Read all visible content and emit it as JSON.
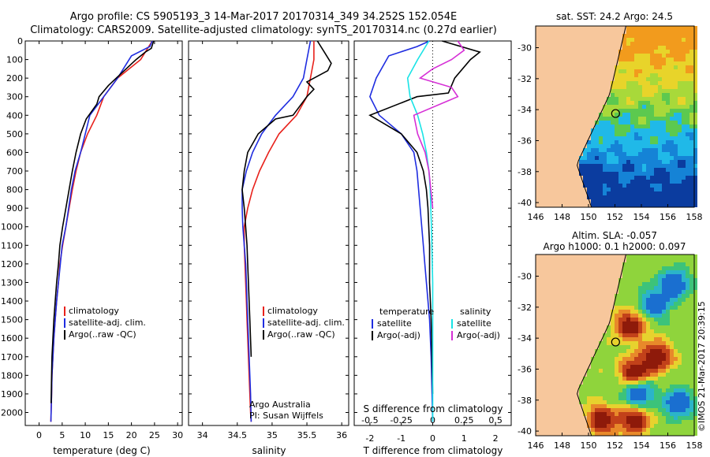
{
  "header": {
    "line1": "Argo profile: CS 5905193_3 14-Mar-2017 20170314_349 34.252S 152.054E",
    "line2": "Climatology: CARS2009. Satellite-adjusted climatology: synTS_20170314.nc (0.27d earlier)"
  },
  "colors": {
    "climatology": "#e8211b",
    "satellite": "#1f2de0",
    "argo": "#000000",
    "sat_salinity": "#19e3e6",
    "argo_salinity": "#d62fd6",
    "land": "#f7c79c"
  },
  "chart_data": [
    {
      "id": "temperature",
      "type": "line",
      "xlabel": "temperature (deg C)",
      "xlim": [
        -3,
        31
      ],
      "xticks": [
        0,
        5,
        10,
        15,
        20,
        25,
        30
      ],
      "ylim": [
        2070,
        0
      ],
      "yticks": [
        0,
        100,
        200,
        300,
        400,
        500,
        600,
        700,
        800,
        900,
        1000,
        1100,
        1200,
        1300,
        1400,
        1500,
        1600,
        1700,
        1800,
        1900,
        2000
      ],
      "legend": [
        "climatology",
        "satellite-adj. clim.",
        "Argo(..raw -QC)"
      ],
      "series": [
        {
          "name": "climatology",
          "x": [
            24.5,
            22,
            17,
            14,
            12.5,
            10.5,
            9,
            8,
            7.2,
            6.5,
            5.8,
            5.1,
            4.5,
            4.2,
            3.8,
            3.5,
            3.2,
            3,
            2.8,
            2.7,
            2.6,
            2.55
          ],
          "y": [
            0,
            100,
            200,
            300,
            400,
            500,
            600,
            700,
            800,
            900,
            1000,
            1100,
            1200,
            1300,
            1400,
            1500,
            1600,
            1700,
            1800,
            1900,
            2000,
            2050
          ]
        },
        {
          "name": "satellite",
          "x": [
            24.5,
            24,
            20,
            17,
            14,
            11,
            10,
            9,
            7.8,
            7,
            6.4,
            5.8,
            5,
            4.6,
            4.2,
            3.8,
            3.5,
            3.2,
            3,
            2.8,
            2.7,
            2.6,
            2.55
          ],
          "y": [
            0,
            30,
            80,
            200,
            300,
            400,
            500,
            600,
            700,
            800,
            900,
            1000,
            1100,
            1200,
            1300,
            1400,
            1500,
            1600,
            1700,
            1800,
            1900,
            2000,
            2050
          ]
        },
        {
          "name": "argo",
          "x": [
            24.8,
            24.3,
            23,
            21,
            18,
            15,
            13,
            12.5,
            10.2,
            9,
            8,
            7.2,
            6.5,
            5.8,
            5.1,
            4.5,
            4.2,
            3.8,
            3.5,
            3.2,
            3,
            2.8,
            2.7,
            2.6
          ],
          "y": [
            0,
            40,
            60,
            100,
            170,
            240,
            300,
            340,
            420,
            500,
            600,
            700,
            800,
            900,
            1000,
            1100,
            1200,
            1300,
            1400,
            1500,
            1600,
            1700,
            1800,
            1950
          ]
        }
      ]
    },
    {
      "id": "salinity",
      "type": "line",
      "xlabel": "salinity",
      "xlim": [
        33.8,
        36.1
      ],
      "xticks": [
        34,
        34.5,
        35,
        35.5,
        36
      ],
      "ylim": [
        2070,
        0
      ],
      "legend": [
        "climatology",
        "satellite-adj. clim.",
        "Argo(..raw -QC)"
      ],
      "annotations": [
        "Argo Australia",
        "PI: Susan Wijffels"
      ],
      "series": [
        {
          "name": "climatology",
          "x": [
            35.6,
            35.6,
            35.55,
            35.5,
            35.35,
            35.1,
            34.95,
            34.82,
            34.72,
            34.65,
            34.6,
            34.6,
            34.61,
            34.62,
            34.63,
            34.64,
            34.65,
            34.66,
            34.67,
            34.68,
            34.69,
            34.7
          ],
          "y": [
            0,
            100,
            200,
            300,
            400,
            500,
            600,
            700,
            800,
            900,
            1000,
            1100,
            1200,
            1300,
            1400,
            1500,
            1600,
            1700,
            1800,
            1900,
            2000,
            2050
          ]
        },
        {
          "name": "satellite",
          "x": [
            35.55,
            35.5,
            35.45,
            35.3,
            35.05,
            34.85,
            34.72,
            34.63,
            34.57,
            34.57,
            34.58,
            34.6,
            34.62,
            34.63,
            34.64,
            34.65,
            34.66,
            34.67,
            34.68,
            34.69,
            34.7
          ],
          "y": [
            0,
            100,
            200,
            300,
            400,
            500,
            600,
            700,
            800,
            900,
            1000,
            1100,
            1200,
            1300,
            1400,
            1500,
            1600,
            1700,
            1800,
            1900,
            2050
          ]
        },
        {
          "name": "argo",
          "x": [
            35.65,
            35.75,
            35.85,
            35.8,
            35.5,
            35.6,
            35.5,
            35.3,
            35.05,
            34.8,
            34.65,
            34.6,
            34.57,
            34.6,
            34.62,
            34.64,
            34.66,
            34.68,
            34.7
          ],
          "y": [
            0,
            60,
            120,
            160,
            220,
            260,
            300,
            400,
            420,
            500,
            600,
            700,
            800,
            900,
            1000,
            1100,
            1300,
            1500,
            1700
          ]
        }
      ]
    },
    {
      "id": "difference",
      "type": "line",
      "xlabel_top": "S difference from climatology",
      "xlabel_bottom": "T difference from climatology",
      "top_ticks": [
        -0.5,
        -0.25,
        0,
        0.25,
        0.5
      ],
      "bottom_ticks": [
        -2,
        -1,
        0,
        1,
        2
      ],
      "xlim": [
        -2.5,
        2.5
      ],
      "ylim": [
        2070,
        0
      ],
      "legend_left_title": "temperature",
      "legend_right_title": "salinity",
      "legend": [
        "satellite",
        "Argo(-adj)",
        "satellite",
        "Argo(-adj)"
      ],
      "series": [
        {
          "name": "T satellite",
          "x": [
            -0.1,
            -0.5,
            -1.4,
            -1.8,
            -2,
            -1.7,
            -1,
            -0.6,
            -0.5,
            -0.45,
            -0.4,
            -0.35,
            -0.3,
            -0.25,
            -0.2,
            -0.15,
            -0.1,
            -0.05,
            0
          ],
          "y": [
            0,
            30,
            80,
            200,
            300,
            400,
            500,
            600,
            700,
            800,
            900,
            1000,
            1100,
            1200,
            1300,
            1400,
            1500,
            1700,
            2050
          ]
        },
        {
          "name": "T argo",
          "x": [
            0.3,
            1.5,
            1.2,
            0.7,
            0.5,
            -0.5,
            -2,
            -1.5,
            -1,
            -0.5,
            -0.3,
            -0.2,
            -0.15,
            -0.1,
            -0.1,
            -0.05,
            0
          ],
          "y": [
            0,
            60,
            100,
            200,
            280,
            300,
            400,
            450,
            500,
            600,
            700,
            800,
            900,
            1100,
            1300,
            1500,
            1900
          ]
        },
        {
          "name": "S satellite",
          "x": [
            -0.03,
            -0.12,
            -0.2,
            -0.18,
            -0.12,
            -0.08,
            -0.05,
            -0.03,
            -0.02,
            -0.01,
            0,
            0
          ],
          "y": [
            0,
            100,
            200,
            300,
            400,
            500,
            600,
            700,
            800,
            1000,
            1300,
            2050
          ]
        },
        {
          "name": "S argo",
          "x": [
            0.2,
            0.25,
            0.15,
            0,
            -0.1,
            0.15,
            0.2,
            -0.15,
            -0.12,
            -0.06,
            -0.03,
            0
          ],
          "y": [
            0,
            50,
            100,
            150,
            200,
            250,
            300,
            400,
            500,
            600,
            700,
            900
          ]
        }
      ]
    },
    {
      "id": "sst_map",
      "type": "heatmap",
      "title": "sat. SST: 24.2  Argo: 24.5",
      "xlim": [
        146,
        158
      ],
      "ylim": [
        -40.3,
        -28.6
      ],
      "xticks": [
        146,
        148,
        150,
        152,
        154,
        156,
        158
      ],
      "yticks": [
        -30,
        -32,
        -34,
        -36,
        -38,
        -40
      ],
      "marker": {
        "lon": 152.05,
        "lat": -34.25
      }
    },
    {
      "id": "sla_map",
      "type": "heatmap",
      "title1": "Altim. SLA: -0.057",
      "title2": "Argo h1000: 0.1  h2000: 0.097",
      "xlim": [
        146,
        158
      ],
      "ylim": [
        -40.3,
        -28.6
      ],
      "xticks": [
        146,
        148,
        150,
        152,
        154,
        156,
        158
      ],
      "yticks": [
        -30,
        -32,
        -34,
        -36,
        -38,
        -40
      ],
      "marker": {
        "lon": 152.05,
        "lat": -34.25
      }
    }
  ],
  "credit": "©IMOS 21-Mar-2017 20:39:15"
}
